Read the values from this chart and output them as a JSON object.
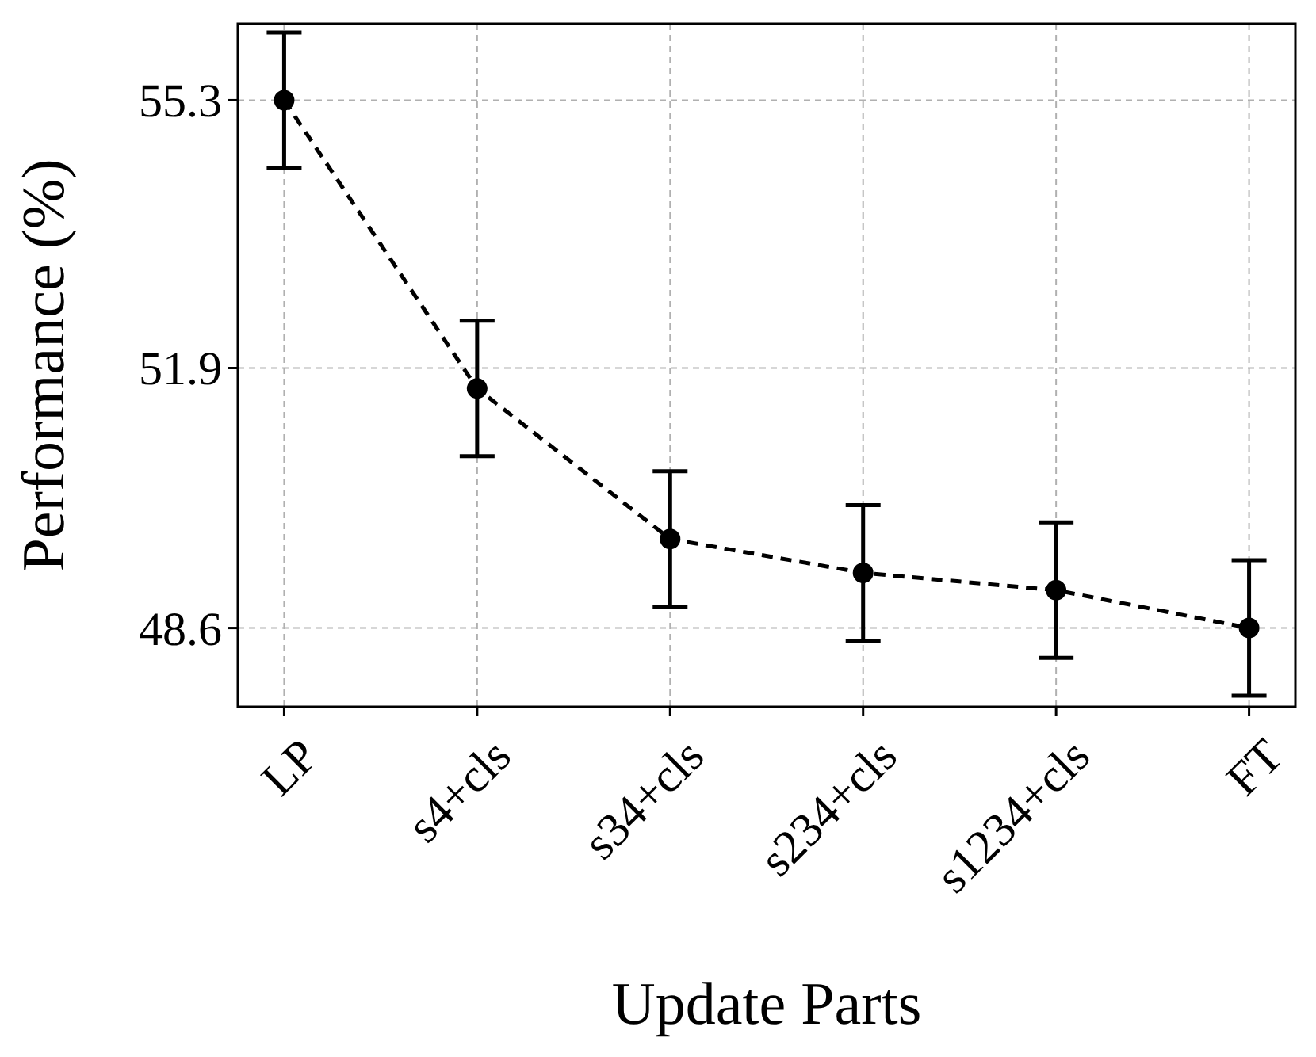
{
  "chart_data": {
    "type": "line",
    "xlabel": "Update Parts",
    "ylabel": "Performance (%)",
    "categories": [
      "LP",
      "s4+cls",
      "s34+cls",
      "s234+cls",
      "s1234+cls",
      "FT"
    ],
    "series": [
      {
        "color": "#000000",
        "values": [
          55.3,
          51.64,
          49.73,
          49.3,
          49.08,
          48.6
        ],
        "errors": [
          0.86,
          0.86,
          0.86,
          0.86,
          0.86,
          0.86
        ]
      }
    ],
    "ylim": [
      47.6,
      56.27
    ],
    "yticks": [
      48.6,
      51.9,
      55.3
    ],
    "grid": true,
    "marker": "circle",
    "line_style": "dashed"
  }
}
